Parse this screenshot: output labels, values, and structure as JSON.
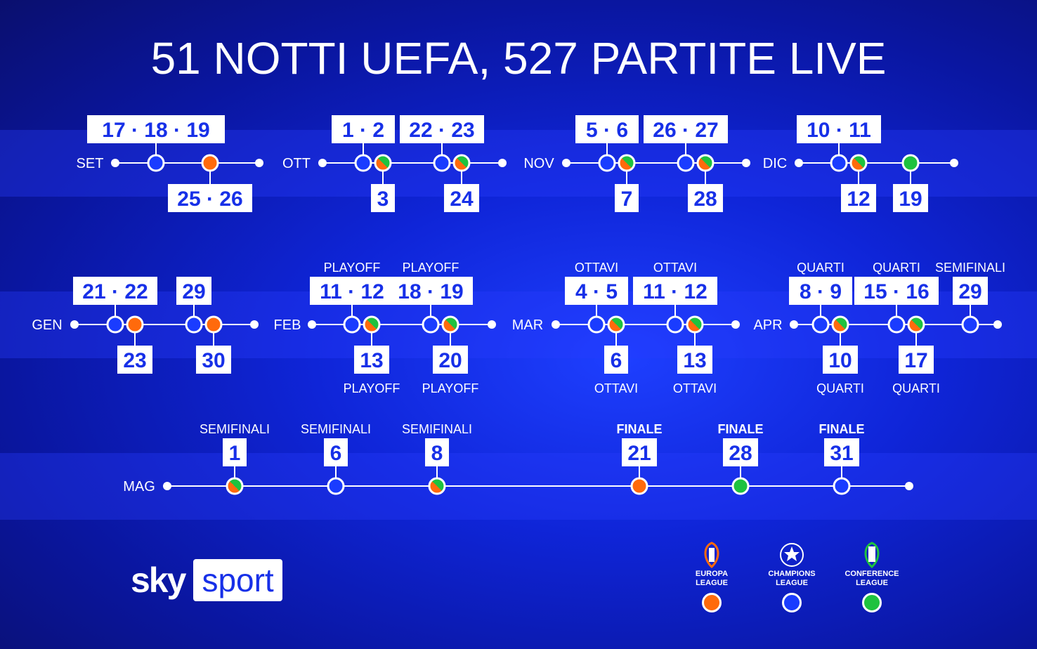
{
  "title": "51 NOTTI UEFA, 527 PARTITE LIVE",
  "colors": {
    "europa": "#ff6a0c",
    "champions": "#1a3cff",
    "conference": "#1ec23f",
    "mixed": "europa+conference",
    "line": "#ffffff"
  },
  "months": [
    {
      "label": "SET",
      "rows": 0,
      "events": [
        {
          "date": "17 · 18 · 19",
          "comp": "champions",
          "pos": "above"
        },
        {
          "date": "25 · 26",
          "comp": "europa",
          "pos": "below"
        }
      ]
    },
    {
      "label": "OTT",
      "rows": 0,
      "events": [
        {
          "date": "1 · 2",
          "comp": "champions",
          "pos": "above"
        },
        {
          "date": "3",
          "comp": "mixed",
          "pos": "below"
        },
        {
          "date": "22 · 23",
          "comp": "champions",
          "pos": "above"
        },
        {
          "date": "24",
          "comp": "mixed",
          "pos": "below"
        }
      ]
    },
    {
      "label": "NOV",
      "rows": 0,
      "events": [
        {
          "date": "5 · 6",
          "comp": "champions",
          "pos": "above"
        },
        {
          "date": "7",
          "comp": "mixed",
          "pos": "below"
        },
        {
          "date": "26 · 27",
          "comp": "champions",
          "pos": "above"
        },
        {
          "date": "28",
          "comp": "mixed",
          "pos": "below"
        }
      ]
    },
    {
      "label": "DIC",
      "rows": 0,
      "events": [
        {
          "date": "10 · 11",
          "comp": "champions",
          "pos": "above"
        },
        {
          "date": "12",
          "comp": "mixed",
          "pos": "below"
        },
        {
          "date": "19",
          "comp": "conference",
          "pos": "below"
        }
      ]
    },
    {
      "label": "GEN",
      "rows": 1,
      "events": [
        {
          "date": "21 · 22",
          "comp": "champions",
          "pos": "above"
        },
        {
          "date": "23",
          "comp": "europa",
          "pos": "below"
        },
        {
          "date": "29",
          "comp": "champions",
          "pos": "above"
        },
        {
          "date": "30",
          "comp": "europa",
          "pos": "below"
        }
      ]
    },
    {
      "label": "FEB",
      "rows": 1,
      "events": [
        {
          "date": "11 · 12",
          "comp": "champions",
          "pos": "above",
          "phase": "PLAYOFF"
        },
        {
          "date": "13",
          "comp": "mixed",
          "pos": "below",
          "phase": "PLAYOFF"
        },
        {
          "date": "18 · 19",
          "comp": "champions",
          "pos": "above",
          "phase": "PLAYOFF"
        },
        {
          "date": "20",
          "comp": "mixed",
          "pos": "below",
          "phase": "PLAYOFF"
        }
      ]
    },
    {
      "label": "MAR",
      "rows": 1,
      "events": [
        {
          "date": "4 · 5",
          "comp": "champions",
          "pos": "above",
          "phase": "OTTAVI"
        },
        {
          "date": "6",
          "comp": "mixed",
          "pos": "below",
          "phase": "OTTAVI"
        },
        {
          "date": "11 · 12",
          "comp": "champions",
          "pos": "above",
          "phase": "OTTAVI"
        },
        {
          "date": "13",
          "comp": "mixed",
          "pos": "below",
          "phase": "OTTAVI"
        }
      ]
    },
    {
      "label": "APR",
      "rows": 1,
      "events": [
        {
          "date": "8 · 9",
          "comp": "champions",
          "pos": "above",
          "phase": "QUARTI"
        },
        {
          "date": "10",
          "comp": "mixed",
          "pos": "below",
          "phase": "QUARTI"
        },
        {
          "date": "15 · 16",
          "comp": "champions",
          "pos": "above",
          "phase": "QUARTI"
        },
        {
          "date": "17",
          "comp": "mixed",
          "pos": "below",
          "phase": "QUARTI"
        },
        {
          "date": "29",
          "comp": "champions",
          "pos": "above",
          "phase": "SEMIFINALI"
        }
      ]
    },
    {
      "label": "MAG",
      "rows": 2,
      "events": [
        {
          "date": "1",
          "comp": "mixed",
          "pos": "above",
          "phase": "SEMIFINALI"
        },
        {
          "date": "6",
          "comp": "champions",
          "pos": "above",
          "phase": "SEMIFINALI"
        },
        {
          "date": "8",
          "comp": "mixed",
          "pos": "above",
          "phase": "SEMIFINALI"
        },
        {
          "date": "21",
          "comp": "europa",
          "pos": "above",
          "phase": "FINALE",
          "bold": true
        },
        {
          "date": "28",
          "comp": "conference",
          "pos": "above",
          "phase": "FINALE",
          "bold": true
        },
        {
          "date": "31",
          "comp": "champions",
          "pos": "above",
          "phase": "FINALE",
          "bold": true
        }
      ]
    }
  ],
  "brand": {
    "sky": "sky",
    "sport": "sport"
  },
  "legend": [
    {
      "id": "europa",
      "line1": "EUROPA",
      "line2": "LEAGUE",
      "color": "#ff6a0c"
    },
    {
      "id": "champions",
      "line1": "CHAMPIONS",
      "line2": "LEAGUE",
      "color": "#1a3cff"
    },
    {
      "id": "conference",
      "line1": "CONFERENCE",
      "line2": "LEAGUE",
      "color": "#1ec23f"
    }
  ]
}
